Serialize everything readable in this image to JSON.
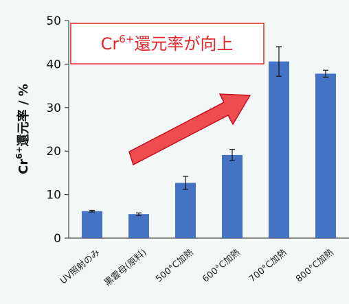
{
  "chart_data": {
    "type": "bar",
    "categories": [
      "UV照射のみ",
      "黒雲母(原料)",
      "500°C加熱",
      "600°C加熱",
      "700°C加熱",
      "800°C加熱"
    ],
    "values": [
      6.2,
      5.5,
      12.7,
      19.1,
      40.6,
      37.8
    ],
    "error": [
      0.2,
      0.3,
      1.5,
      1.3,
      3.4,
      0.8
    ],
    "ylim": [
      0,
      50
    ],
    "yticks": [
      0,
      10,
      20,
      30,
      40,
      50
    ],
    "ylabel": {
      "species": "Cr",
      "superscript": "6+",
      "text": "還元率 / %"
    },
    "annotation": {
      "species": "Cr",
      "superscript": "6+",
      "text": "還元率が向上"
    },
    "colors": {
      "bar": "#4472c4",
      "arrow_fill": "#ef4c50",
      "arrow_stroke": "#c0101e",
      "callout_border": "#e2262a",
      "callout_text": "#e2262a"
    },
    "grid": false
  }
}
